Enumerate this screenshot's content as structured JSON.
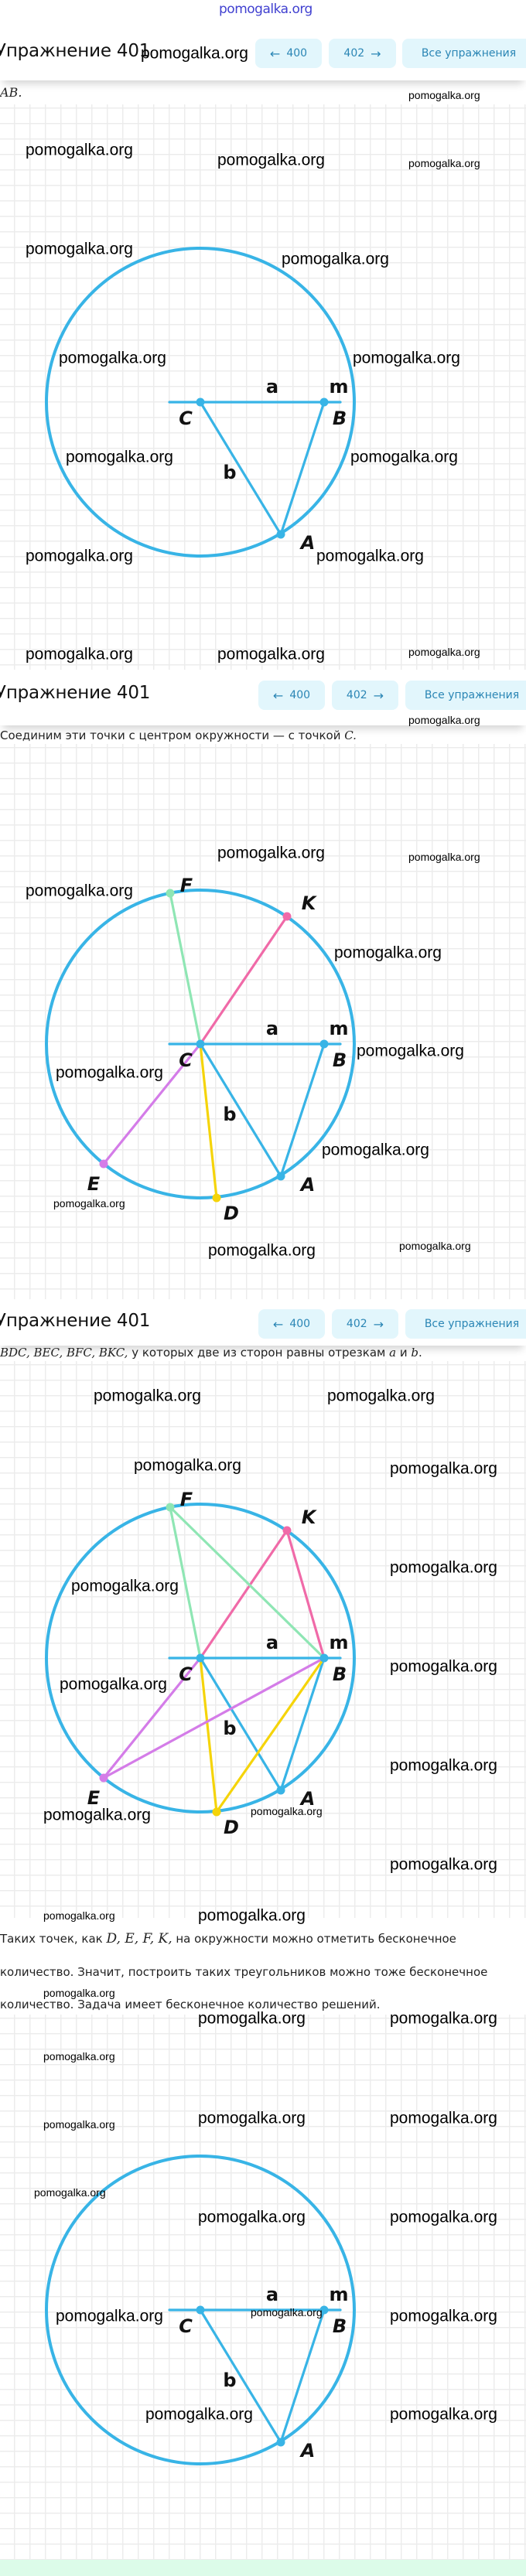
{
  "logo": "pomogalka.org",
  "watermark": "pomogalka.org",
  "header": {
    "title": "Упражнение 401",
    "prev_label": "400",
    "next_label": "402",
    "all_label": "Все упражнения",
    "prev_icon": "arrow-left-icon",
    "next_icon": "arrow-right-icon"
  },
  "sections": [
    {
      "text_math": "AB."
    },
    {
      "text": "Соединим эти точки с центром окружности — с точкой ",
      "text_math": "C."
    },
    {
      "text_math": "BDC, BEC, BFC, BKC,",
      "text": " у которых две из сторон равны отрезкам ",
      "a": "a",
      "and": " и ",
      "b": "b",
      "end": "."
    }
  ],
  "paragraph": {
    "line1_pre": "Таких точек, как ",
    "line1_math": "D, E, F, K,",
    "line1_post": " на окружности можно отметить бесконечное",
    "line2": "количество. Значит, построить таких треугольников можно тоже бесконечное",
    "line3": "количество. Задача имеет бесконечное количество решений."
  },
  "figure_labels": {
    "A": "A",
    "B": "B",
    "C": "C",
    "D": "D",
    "E": "E",
    "F": "F",
    "K": "K",
    "a": "a",
    "b": "b",
    "m": "m"
  },
  "colors": {
    "circle": "#38b4e6",
    "green": "#8fe6b4",
    "pink": "#f06aa8",
    "purple": "#d47ce8",
    "yellow": "#f5d40a",
    "button_bg": "#e2f6fc",
    "button_text": "#2b86b5",
    "footer_band": "#dcfce9"
  }
}
